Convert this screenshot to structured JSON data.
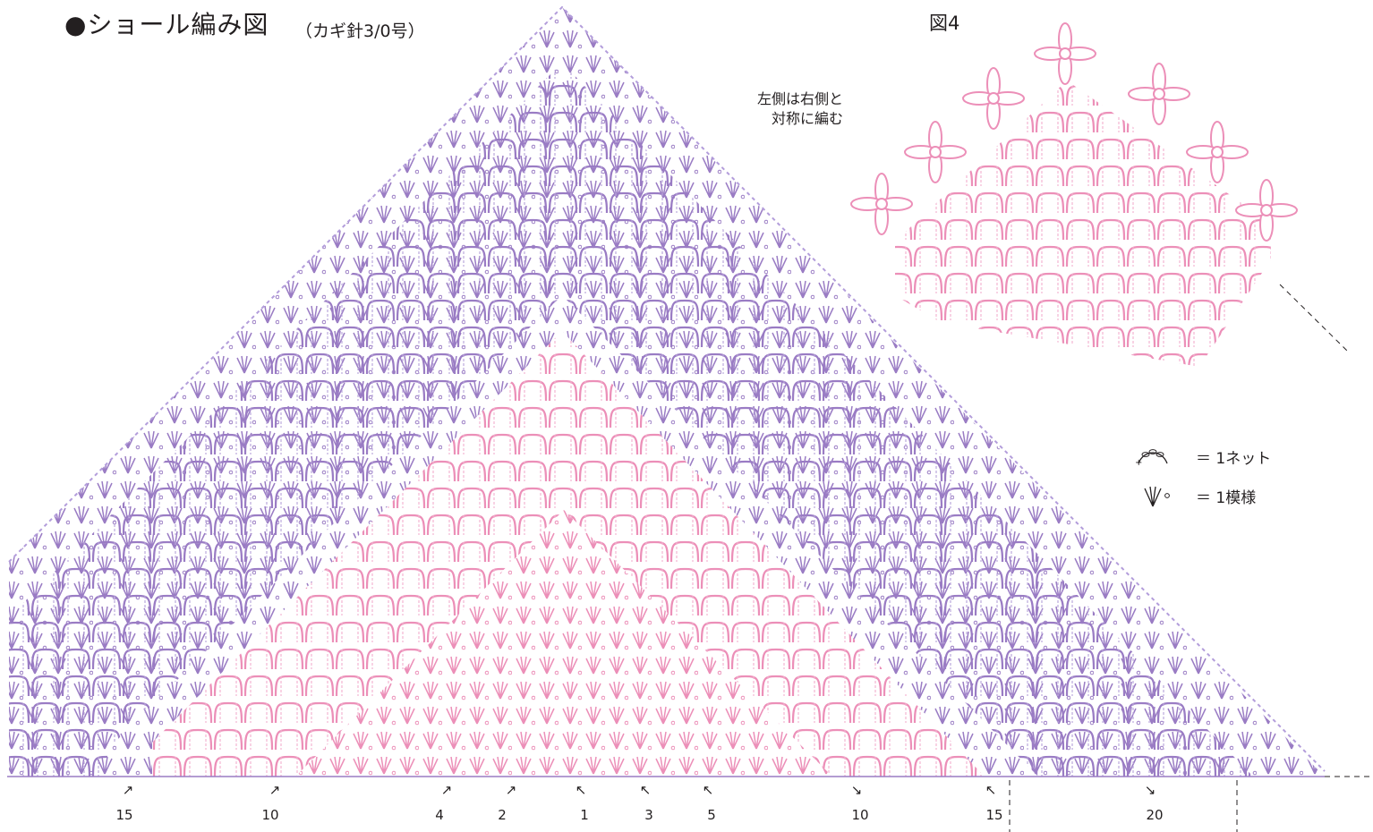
{
  "title": "●ショール編み図",
  "hook": "（カギ針3/0号）",
  "figure_label": "図4",
  "note": [
    "左側は右側と",
    "対称に編む"
  ],
  "legend": [
    {
      "icon": "net-chain-icon",
      "text": "＝ 1ネット"
    },
    {
      "icon": "fan-stitch-icon",
      "text": "＝ 1模様"
    }
  ],
  "row_markers": [
    {
      "label": "15",
      "arrow": "↗"
    },
    {
      "label": "10",
      "arrow": "↗"
    },
    {
      "label": "4",
      "arrow": "↗"
    },
    {
      "label": "2",
      "arrow": "↗"
    },
    {
      "label": "1",
      "arrow": "↖"
    },
    {
      "label": "3",
      "arrow": "↖"
    },
    {
      "label": "5",
      "arrow": "↖"
    },
    {
      "label": "10",
      "arrow": "↘"
    },
    {
      "label": "15",
      "arrow": "↖"
    },
    {
      "label": "20",
      "arrow": "↘"
    }
  ],
  "colors": {
    "pink": "#ec8fb8",
    "purple": "#9a7cc4",
    "lavender": "#b39ddb",
    "text": "#231f20"
  }
}
